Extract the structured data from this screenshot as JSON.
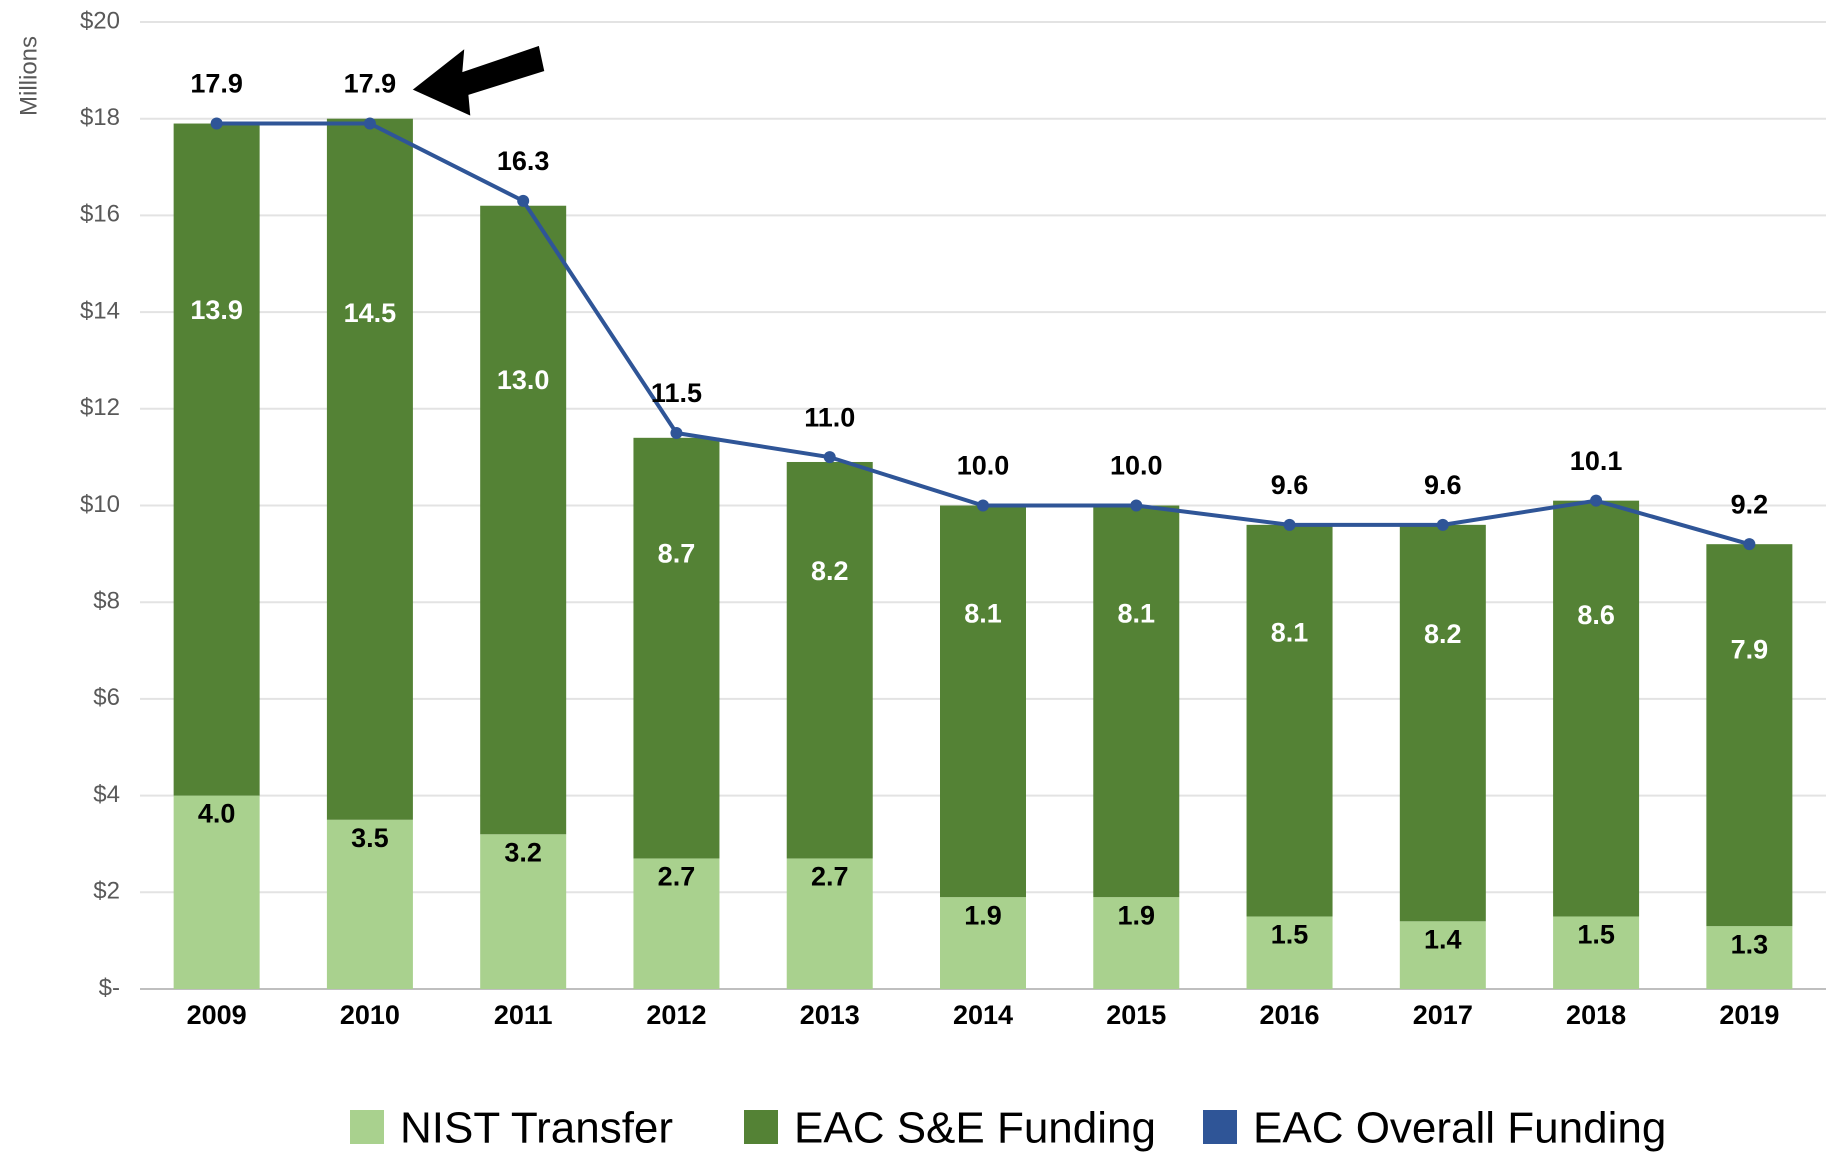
{
  "chart_data": {
    "type": "bar",
    "y_axis_label": "Millions",
    "categories": [
      "2009",
      "2010",
      "2011",
      "2012",
      "2013",
      "2014",
      "2015",
      "2016",
      "2017",
      "2018",
      "2019"
    ],
    "series": [
      {
        "name": "NIST Transfer",
        "color": "#a9d18e",
        "type": "bar",
        "values": [
          4.0,
          3.5,
          3.2,
          2.7,
          2.7,
          1.9,
          1.9,
          1.5,
          1.4,
          1.5,
          1.3
        ],
        "value_labels": [
          "4.0",
          "3.5",
          "3.2",
          "2.7",
          "2.7",
          "1.9",
          "1.9",
          "1.5",
          "1.4",
          "1.5",
          "1.3"
        ]
      },
      {
        "name": "EAC S&E Funding",
        "color": "#548235",
        "type": "bar",
        "values": [
          13.9,
          14.5,
          13.0,
          8.7,
          8.2,
          8.1,
          8.1,
          8.1,
          8.2,
          8.6,
          7.9
        ],
        "value_labels": [
          "13.9",
          "14.5",
          "13.0",
          "8.7",
          "8.2",
          "8.1",
          "8.1",
          "8.1",
          "8.2",
          "8.6",
          "7.9"
        ]
      },
      {
        "name": "EAC Overall Funding",
        "color": "#2f5597",
        "type": "line",
        "values": [
          17.9,
          17.9,
          16.3,
          11.5,
          11.0,
          10.0,
          10.0,
          9.6,
          9.6,
          10.1,
          9.2
        ],
        "value_labels": [
          "17.9",
          "17.9",
          "16.3",
          "11.5",
          "11.0",
          "10.0",
          "10.0",
          "9.6",
          "9.6",
          "10.1",
          "9.2"
        ]
      }
    ],
    "stacked": true,
    "ylim": [
      0,
      20
    ],
    "yticks": [
      {
        "value": 0,
        "label": "$-"
      },
      {
        "value": 2,
        "label": "$2"
      },
      {
        "value": 4,
        "label": "$4"
      },
      {
        "value": 6,
        "label": "$6"
      },
      {
        "value": 8,
        "label": "$8"
      },
      {
        "value": 10,
        "label": "$10"
      },
      {
        "value": 12,
        "label": "$12"
      },
      {
        "value": 14,
        "label": "$14"
      },
      {
        "value": 16,
        "label": "$16"
      },
      {
        "value": 18,
        "label": "$18"
      },
      {
        "value": 20,
        "label": "$20"
      }
    ],
    "grid": true,
    "legend": "bottom"
  }
}
